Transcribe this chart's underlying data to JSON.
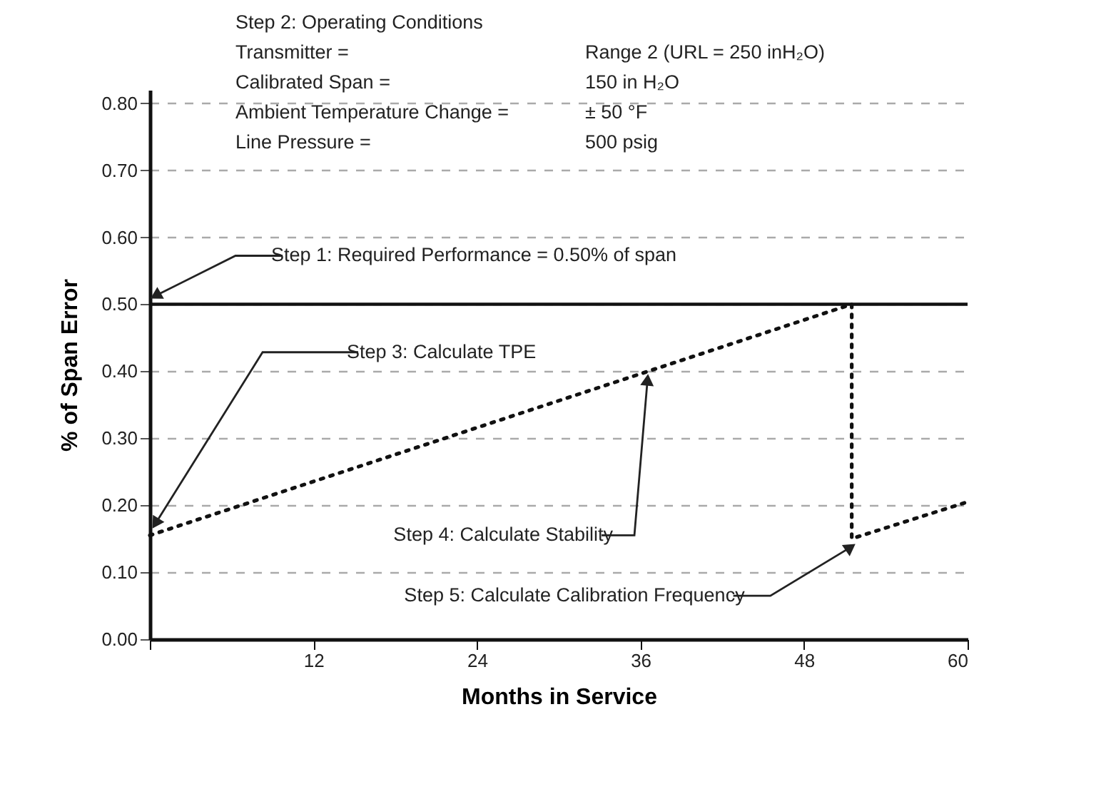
{
  "chart_data": {
    "type": "line",
    "xlabel": "Months in Service",
    "ylabel": "% of Span Error",
    "xlim": [
      0,
      60
    ],
    "ylim": [
      0,
      0.82
    ],
    "xticks": [
      {
        "value": 0,
        "label": null
      },
      12,
      24,
      36,
      48,
      60
    ],
    "yticks": [
      {
        "value": 0,
        "label": "0.00"
      },
      {
        "value": 0.1,
        "label": "0.10"
      },
      {
        "value": 0.2,
        "label": "0.20"
      },
      {
        "value": 0.3,
        "label": "0.30"
      },
      {
        "value": 0.4,
        "label": "0.40"
      },
      {
        "value": 0.5,
        "label": "0.50"
      },
      {
        "value": 0.6,
        "label": "0.60"
      },
      {
        "value": 0.7,
        "label": "0.70"
      },
      {
        "value": 0.8,
        "label": "0.80"
      }
    ],
    "grid": "y",
    "line_style": "dotted",
    "marker": "none",
    "series": [
      {
        "color": "#111111",
        "x": [
          0,
          51.5,
          51.5,
          60
        ],
        "values": [
          0.155,
          0.5,
          0.15,
          0.205
        ]
      }
    ],
    "ref_lines": [
      {
        "axis": "y",
        "value": 0.5,
        "color": "#111111",
        "line_style": "solid"
      }
    ],
    "annotations": [
      "Step 2: Operating Conditions",
      "Transmitter =",
      "Range 2 (URL = 250 inH₂O)",
      "Calibrated Span =",
      "150 in H₂O",
      "Ambient Temperature Change =",
      "± 50 °F",
      "Line Pressure =",
      "500 psig",
      {
        "text": "Step 1: Required Performance = 0.50% of span",
        "x": 0,
        "y": 0.5
      },
      {
        "text": "Step 3: Calculate TPE",
        "x": 0,
        "y": 0.16
      },
      {
        "text": "Step 4: Calculate Stability",
        "x": 36.6,
        "y": 0.4
      },
      {
        "text": "Step 5: Calculate Calibration Frequency",
        "x": 51.5,
        "y": 0.15
      }
    ]
  }
}
